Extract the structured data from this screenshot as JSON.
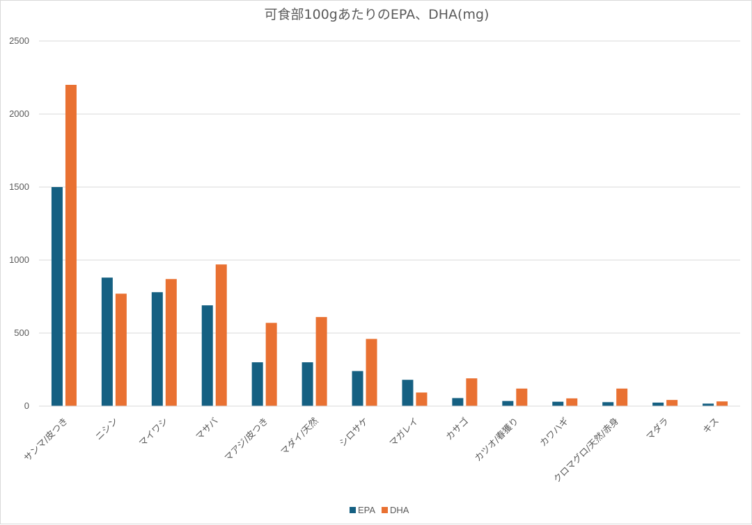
{
  "chart_data": {
    "type": "bar",
    "title": "可食部100gあたりのEPA、DHA(mg)",
    "xlabel": "",
    "ylabel": "",
    "ylim": [
      0,
      2500
    ],
    "yticks": [
      0,
      500,
      1000,
      1500,
      2000,
      2500
    ],
    "grid": true,
    "legend_position": "bottom",
    "categories": [
      "サンマ/皮つき",
      "ニシン",
      "マイワシ",
      "マサバ",
      "マアジ/皮つき",
      "マダイ/天然",
      "シロサケ",
      "マガレイ",
      "カサゴ",
      "カツオ/春獲り",
      "カワハギ",
      "クロマグロ/天然/赤身",
      "マダラ",
      "キス"
    ],
    "series": [
      {
        "name": "EPA",
        "color": "#156082",
        "values": [
          1500,
          880,
          780,
          690,
          300,
          300,
          240,
          180,
          55,
          35,
          30,
          27,
          24,
          17
        ]
      },
      {
        "name": "DHA",
        "color": "#E97132",
        "values": [
          2200,
          770,
          870,
          970,
          570,
          610,
          460,
          93,
          190,
          120,
          53,
          120,
          42,
          32
        ]
      }
    ]
  }
}
